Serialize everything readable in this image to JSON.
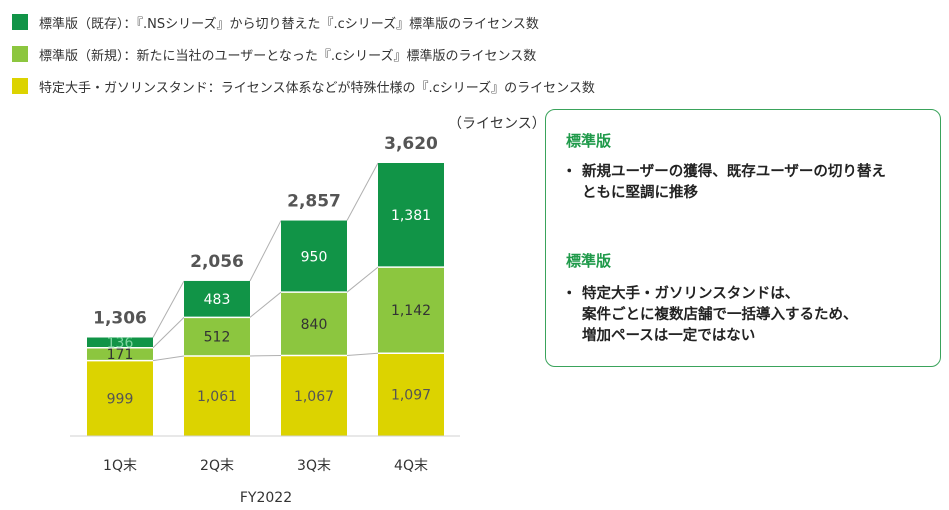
{
  "legend": [
    {
      "label": "標準版（既存）：『.NSシリーズ』から切り替えた『.cシリーズ』標準版のライセンス数",
      "color": "#119447"
    },
    {
      "label": "標準版（新規）：新たに当社のユーザーとなった『.cシリーズ』標準版のライセンス数",
      "color": "#8cc63f"
    },
    {
      "label": "特定大手・ガソリンスタンド：ライセンス体系などが特殊仕様の『.cシリーズ』のライセンス数",
      "color": "#dcd300"
    }
  ],
  "chart_data": {
    "type": "bar",
    "stacked": true,
    "unit_label": "（ライセンス）",
    "xlabel": "FY2022",
    "categories": [
      "1Q末",
      "2Q末",
      "3Q末",
      "4Q末"
    ],
    "series": [
      {
        "name": "特定大手・ガソリンスタンド",
        "values": [
          999,
          1061,
          1067,
          1097
        ],
        "color": "#dcd300"
      },
      {
        "name": "標準版（新規）",
        "values": [
          171,
          512,
          840,
          1142
        ],
        "color": "#8cc63f"
      },
      {
        "name": "標準版（既存）",
        "values": [
          136,
          483,
          950,
          1381
        ],
        "color": "#119447"
      }
    ],
    "value_labels": [
      [
        "999",
        "1,061",
        "1,067",
        "1,097"
      ],
      [
        "171",
        "512",
        "840",
        "1,142"
      ],
      [
        "136",
        "483",
        "950",
        "1,381"
      ]
    ],
    "totals": [
      1306,
      2056,
      2857,
      3620
    ],
    "total_labels": [
      "1,306",
      "2,056",
      "2,857",
      "3,620"
    ],
    "ylim": [
      0,
      3620
    ],
    "grid": false,
    "connector_lines": true
  },
  "info": {
    "sections": [
      {
        "title": "標準版",
        "bullets": [
          "新規ユーザーの獲得、既存ユーザーの切り替え\nともに堅調に推移"
        ]
      },
      {
        "title": "標準版",
        "bullets": [
          "特定大手・ガソリンスタンドは、\n案件ごとに複数店舗で一括導入するため、\n増加ペースは一定ではない"
        ]
      }
    ]
  }
}
